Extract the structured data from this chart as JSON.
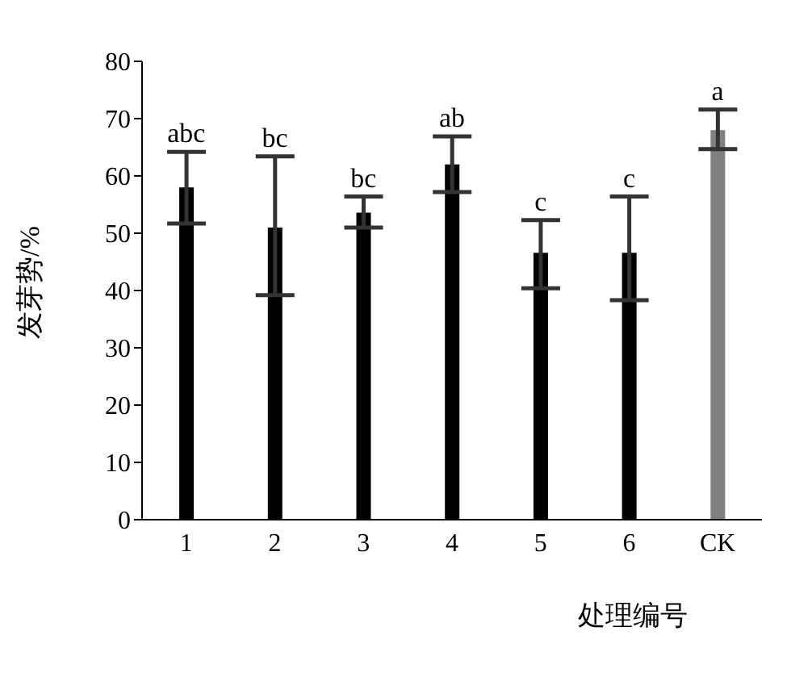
{
  "chart_data": {
    "type": "bar",
    "xlabel": "处理编号",
    "ylabel": "发芽势/%",
    "categories": [
      "1",
      "2",
      "3",
      "4",
      "5",
      "6",
      "CK"
    ],
    "values": [
      58,
      51,
      53.6,
      62,
      46.6,
      46.6,
      68
    ],
    "colors": [
      "#000000",
      "#000000",
      "#000000",
      "#000000",
      "#000000",
      "#000000",
      "#808080"
    ],
    "errors": [
      [
        51.7,
        64.2
      ],
      [
        39.2,
        63.4
      ],
      [
        51,
        56.4
      ],
      [
        57.2,
        66.9
      ],
      [
        40.4,
        52.3
      ],
      [
        38.3,
        56.4
      ],
      [
        64.7,
        71.6
      ]
    ],
    "ylim": [
      0,
      80
    ],
    "yticks": [
      0,
      10,
      20,
      30,
      40,
      50,
      60,
      70,
      80
    ],
    "grid": false,
    "legend": false,
    "annotations": [
      {
        "text": "abc",
        "x": "1",
        "y": 64.2
      },
      {
        "text": "bc",
        "x": "2",
        "y": 63.4
      },
      {
        "text": "bc",
        "x": "3",
        "y": 56.4
      },
      {
        "text": "ab",
        "x": "4",
        "y": 66.9
      },
      {
        "text": "c",
        "x": "5",
        "y": 52.3
      },
      {
        "text": "c",
        "x": "6",
        "y": 56.4
      },
      {
        "text": "a",
        "x": "CK",
        "y": 71.6
      }
    ]
  }
}
